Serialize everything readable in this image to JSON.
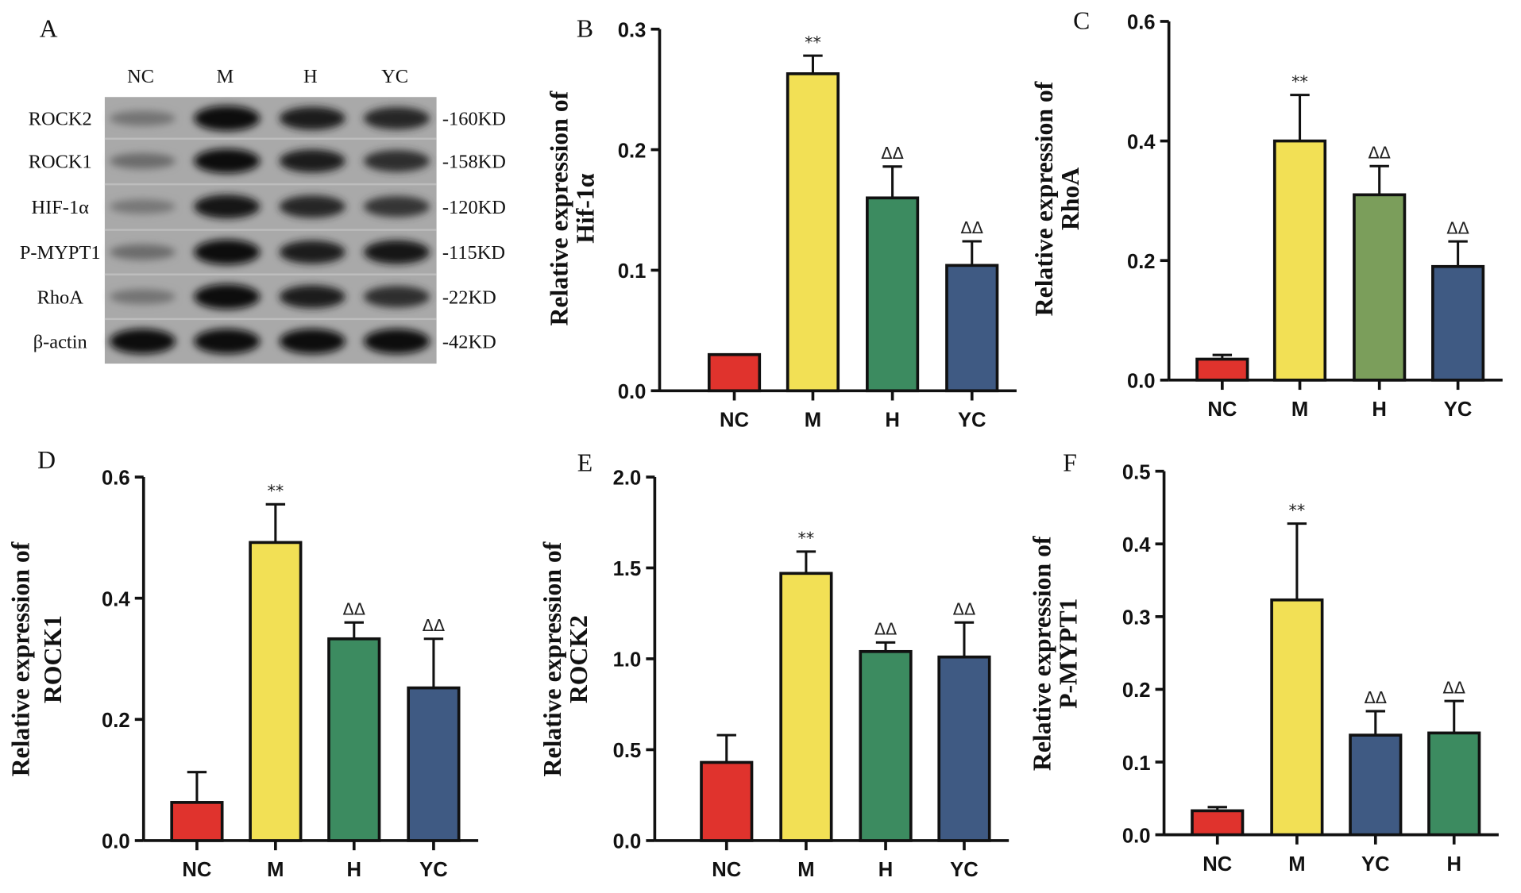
{
  "panels": [
    "A",
    "B",
    "C",
    "D",
    "E",
    "F"
  ],
  "blot": {
    "lanes": [
      "NC",
      "M",
      "H",
      "YC"
    ],
    "rows": [
      {
        "label": "ROCK2",
        "kd": "-160KD"
      },
      {
        "label": "ROCK1",
        "kd": "-158KD"
      },
      {
        "label": "HIF-1α",
        "kd": "-120KD"
      },
      {
        "label": "P-MYPT1",
        "kd": "-115KD"
      },
      {
        "label": "RhoA",
        "kd": "-22KD"
      },
      {
        "label": "β-actin",
        "kd": "-42KD"
      }
    ]
  },
  "chart_data": [
    {
      "panel": "B",
      "type": "bar",
      "ylabel": [
        "Relative expression of",
        "Hif-1α"
      ],
      "categories": [
        "NC",
        "M",
        "H",
        "YC"
      ],
      "values": [
        0.03,
        0.263,
        0.16,
        0.104
      ],
      "errors": [
        0.0,
        0.015,
        0.026,
        0.02
      ],
      "significance": [
        "",
        "**",
        "ΔΔ",
        "ΔΔ"
      ],
      "colors": [
        "#e0332d",
        "#f2e055",
        "#3c8b60",
        "#3f5a83"
      ],
      "ylim": [
        0,
        0.3
      ],
      "yticks": [
        "0.0",
        "0.1",
        "0.2",
        "0.3"
      ]
    },
    {
      "panel": "C",
      "type": "bar",
      "ylabel": [
        "Relative expression of",
        "RhoA"
      ],
      "categories": [
        "NC",
        "M",
        "H",
        "YC"
      ],
      "values": [
        0.035,
        0.4,
        0.31,
        0.19
      ],
      "errors": [
        0.007,
        0.077,
        0.048,
        0.042
      ],
      "significance": [
        "",
        "**",
        "ΔΔ",
        "ΔΔ"
      ],
      "colors": [
        "#e0332d",
        "#f2e055",
        "#7b9e5b",
        "#3f5a83"
      ],
      "ylim": [
        0,
        0.6
      ],
      "yticks": [
        "0.0",
        "0.2",
        "0.4",
        "0.6"
      ]
    },
    {
      "panel": "D",
      "type": "bar",
      "ylabel": [
        "Relative expression of",
        "ROCK1"
      ],
      "categories": [
        "NC",
        "M",
        "H",
        "YC"
      ],
      "values": [
        0.063,
        0.492,
        0.333,
        0.252
      ],
      "errors": [
        0.05,
        0.063,
        0.027,
        0.081
      ],
      "significance": [
        "",
        "**",
        "ΔΔ",
        "ΔΔ"
      ],
      "colors": [
        "#e0332d",
        "#f2e055",
        "#3c8b60",
        "#3f5a83"
      ],
      "ylim": [
        0,
        0.6
      ],
      "yticks": [
        "0.0",
        "0.2",
        "0.4",
        "0.6"
      ]
    },
    {
      "panel": "E",
      "type": "bar",
      "ylabel": [
        "Relative expression of",
        "ROCK2"
      ],
      "categories": [
        "NC",
        "M",
        "H",
        "YC"
      ],
      "values": [
        0.43,
        1.47,
        1.04,
        1.01
      ],
      "errors": [
        0.15,
        0.12,
        0.05,
        0.19
      ],
      "significance": [
        "",
        "**",
        "ΔΔ",
        "ΔΔ"
      ],
      "colors": [
        "#e0332d",
        "#f2e055",
        "#3c8b60",
        "#3f5a83"
      ],
      "ylim": [
        0,
        2.0
      ],
      "yticks": [
        "0.0",
        "0.5",
        "1.0",
        "1.5",
        "2.0"
      ]
    },
    {
      "panel": "F",
      "type": "bar",
      "ylabel": [
        "Relative expression of",
        "P-MYPT1"
      ],
      "categories": [
        "NC",
        "M",
        "YC",
        "H"
      ],
      "values": [
        0.033,
        0.323,
        0.137,
        0.14
      ],
      "errors": [
        0.005,
        0.105,
        0.033,
        0.044
      ],
      "significance": [
        "",
        "**",
        "ΔΔ",
        "ΔΔ"
      ],
      "colors": [
        "#e0332d",
        "#f2e055",
        "#3f5a83",
        "#3c8b60"
      ],
      "ylim": [
        0,
        0.5
      ],
      "yticks": [
        "0.0",
        "0.1",
        "0.2",
        "0.3",
        "0.4",
        "0.5"
      ]
    }
  ]
}
